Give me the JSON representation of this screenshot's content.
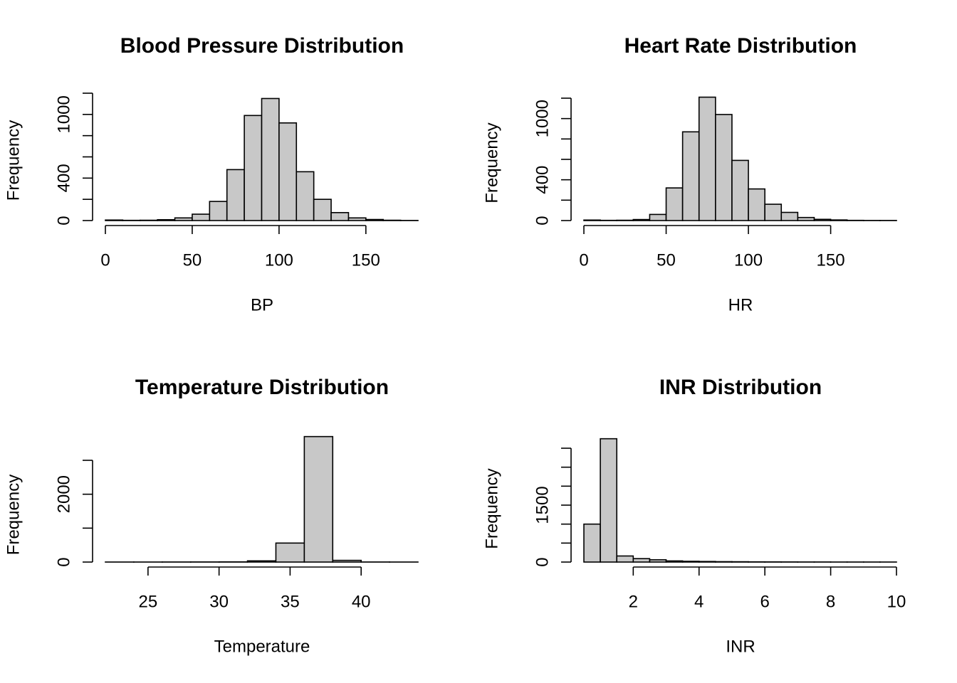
{
  "colors": {
    "bar_fill": "#c8c8c8",
    "bar_stroke": "#000000",
    "background": "#ffffff"
  },
  "chart_data": [
    {
      "type": "bar",
      "title": "Blood Pressure Distribution",
      "xlabel": "BP",
      "ylabel": "Frequency",
      "bin_edges": [
        0,
        10,
        20,
        30,
        40,
        50,
        60,
        70,
        80,
        90,
        100,
        110,
        120,
        130,
        140,
        150,
        160,
        170,
        180
      ],
      "values": [
        5,
        2,
        3,
        8,
        25,
        60,
        180,
        480,
        990,
        1150,
        920,
        460,
        200,
        75,
        25,
        10,
        3,
        1
      ],
      "x_ticks": [
        0,
        50,
        100,
        150
      ],
      "y_ticks": [
        0,
        400,
        1000
      ],
      "y_minor_ticks": [
        200,
        600,
        800,
        1200
      ],
      "xlim": [
        0,
        180
      ],
      "ylim": [
        0,
        1200
      ]
    },
    {
      "type": "bar",
      "title": "Heart Rate Distribution",
      "xlabel": "HR",
      "ylabel": "Frequency",
      "bin_edges": [
        0,
        10,
        20,
        30,
        40,
        50,
        60,
        70,
        80,
        90,
        100,
        110,
        120,
        130,
        140,
        150,
        160,
        170,
        180,
        190
      ],
      "values": [
        5,
        2,
        3,
        10,
        60,
        320,
        870,
        1210,
        1040,
        590,
        310,
        160,
        80,
        30,
        12,
        6,
        2,
        1,
        1
      ],
      "x_ticks": [
        0,
        50,
        100,
        150
      ],
      "y_ticks": [
        0,
        400,
        1000
      ],
      "y_minor_ticks": [
        200,
        600,
        800,
        1200
      ],
      "xlim": [
        0,
        190
      ],
      "ylim": [
        0,
        1200
      ]
    },
    {
      "type": "bar",
      "title": "Temperature Distribution",
      "xlabel": "Temperature",
      "ylabel": "Frequency",
      "bin_edges": [
        22,
        24,
        26,
        28,
        30,
        32,
        34,
        36,
        38,
        40,
        42,
        44
      ],
      "values": [
        1,
        1,
        2,
        3,
        5,
        35,
        560,
        3700,
        50,
        2,
        1
      ],
      "x_ticks": [
        25,
        30,
        35,
        40
      ],
      "y_ticks": [
        0,
        2000
      ],
      "y_minor_ticks": [
        1000,
        3000
      ],
      "xlim": [
        22,
        44
      ],
      "ylim": [
        0,
        3000
      ]
    },
    {
      "type": "bar",
      "title": "INR Distribution",
      "xlabel": "INR",
      "ylabel": "Frequency",
      "bin_edges": [
        0.5,
        1,
        1.5,
        2,
        2.5,
        3,
        3.5,
        4,
        4.5,
        5,
        5.5,
        6,
        6.5,
        7,
        7.5,
        8,
        8.5,
        9,
        9.5,
        10
      ],
      "values": [
        1000,
        3250,
        160,
        90,
        60,
        30,
        20,
        15,
        10,
        8,
        5,
        4,
        3,
        2,
        2,
        1,
        1,
        1,
        1
      ],
      "x_ticks": [
        2,
        4,
        6,
        8,
        10
      ],
      "y_ticks": [
        0,
        1500
      ],
      "y_minor_ticks": [
        500,
        1000,
        2000,
        2500,
        3000
      ],
      "xlim": [
        0.5,
        10
      ],
      "ylim": [
        0,
        3000
      ]
    }
  ]
}
